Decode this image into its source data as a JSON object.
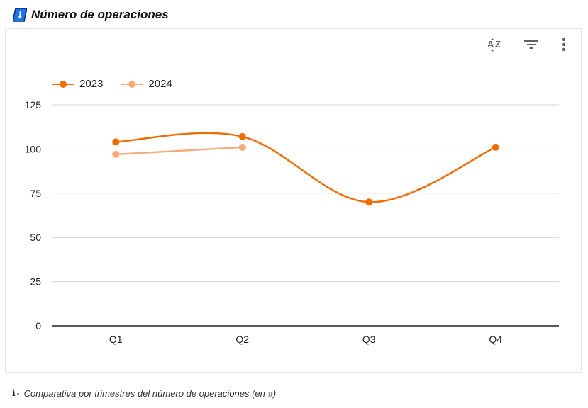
{
  "header": {
    "title": "Número de operaciones",
    "icon": "sort-down-arrow-icon",
    "icon_bg": "#1a73e8"
  },
  "toolbar": {
    "sort_icon": "sort-az-icon",
    "filter_icon": "filter-icon",
    "more_icon": "more-vertical-icon"
  },
  "legend": [
    "2023",
    "2024"
  ],
  "chart_data": {
    "type": "line",
    "categories": [
      "Q1",
      "Q2",
      "Q3",
      "Q4"
    ],
    "series": [
      {
        "name": "2023",
        "values": [
          104,
          107,
          70,
          101
        ],
        "color": "#ef6c00"
      },
      {
        "name": "2024",
        "values": [
          97,
          101,
          null,
          null
        ],
        "color": "#f8a978"
      }
    ],
    "ylim": [
      0,
      125
    ],
    "yticks": [
      0,
      25,
      50,
      75,
      100,
      125
    ],
    "grid": true,
    "legend_position": "top-left",
    "xlabel": "",
    "ylabel": ""
  },
  "footer": {
    "info_mark": "i",
    "dash": "-",
    "note": "Comparativa por trimestres del número de operaciones (en #)"
  }
}
